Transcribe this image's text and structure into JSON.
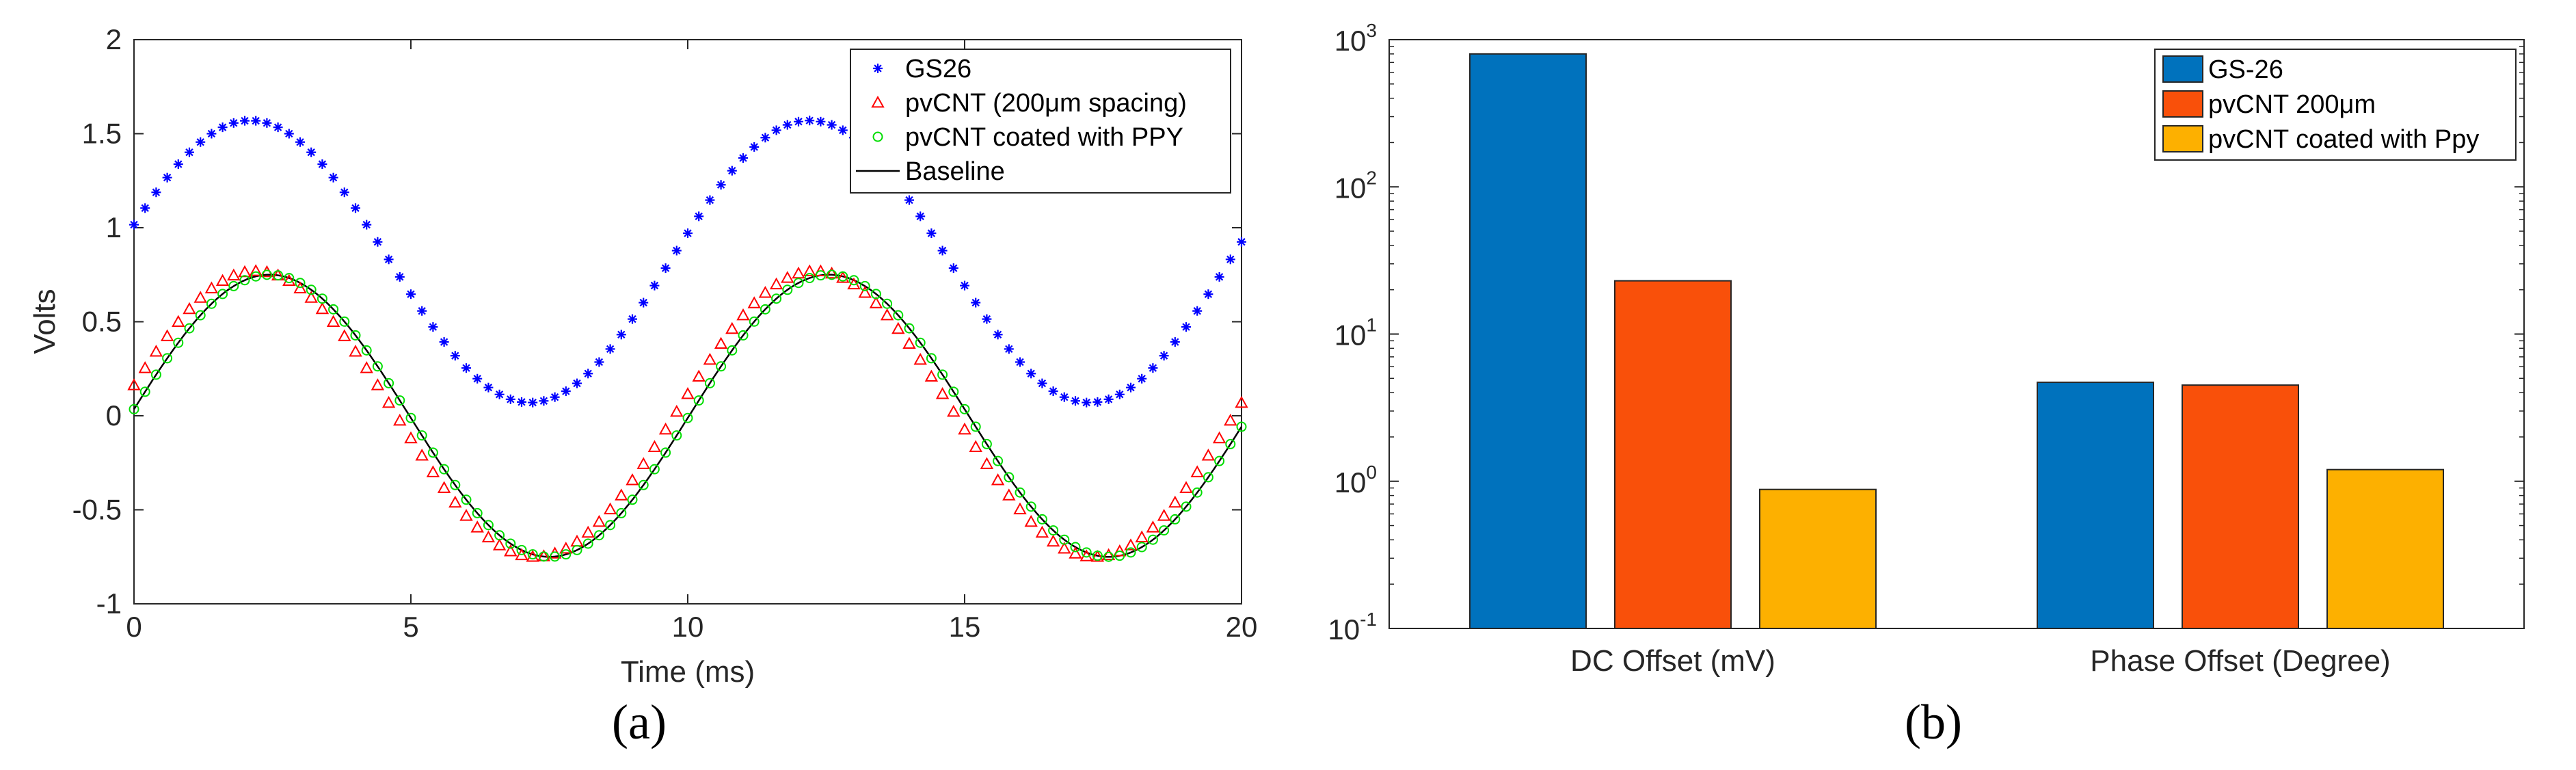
{
  "chart_data": [
    {
      "type": "scatter",
      "panel": "a",
      "panel_label": "(a)",
      "xlabel": "Time (ms)",
      "ylabel": "Volts",
      "xlim": [
        0,
        20
      ],
      "ylim": [
        -1,
        2
      ],
      "xticks": [
        "0",
        "5",
        "10",
        "15",
        "20"
      ],
      "yticks": [
        "-1",
        "-0.5",
        "0",
        "0.5",
        "1",
        "1.5",
        "2"
      ],
      "legend_position": "top-right",
      "series": [
        {
          "name": "GS26",
          "marker": "asterisk",
          "color": "#0000ff",
          "model": {
            "offset": 0.82,
            "amplitude": 0.75,
            "period_ms": 10.1,
            "peak_ms": 2.1
          }
        },
        {
          "name": "pvCNT (200μm spacing)",
          "marker": "triangle",
          "color": "#ff0000",
          "model": {
            "offset": 0.01,
            "amplitude": 0.76,
            "period_ms": 10.1,
            "peak_ms": 2.2
          }
        },
        {
          "name": "pvCNT coated with PPY",
          "marker": "circle",
          "color": "#00dd00",
          "model": {
            "offset": 0.0,
            "amplitude": 0.75,
            "period_ms": 10.1,
            "peak_ms": 2.45
          }
        },
        {
          "name": "Baseline",
          "marker": "line",
          "color": "#000000",
          "model": {
            "offset": 0.0,
            "amplitude": 0.75,
            "period_ms": 10.1,
            "peak_ms": 2.45
          }
        }
      ]
    },
    {
      "type": "bar",
      "panel": "b",
      "panel_label": "(b)",
      "yscale": "log",
      "ylim": [
        0.1,
        1000
      ],
      "ytick_base": "10",
      "ytick_exponents": [
        "-1",
        "0",
        "1",
        "2",
        "3"
      ],
      "categories": [
        "DC Offset (mV)",
        "Phase Offset (Degree)"
      ],
      "legend_position": "top-right",
      "series": [
        {
          "name": "GS-26",
          "color": "#0072bd",
          "values": [
            800,
            4.7
          ]
        },
        {
          "name": "pvCNT 200μm",
          "color": "#f9500a",
          "values": [
            23,
            4.5
          ]
        },
        {
          "name": "pvCNT coated with Ppy",
          "color": "#fdb000",
          "values": [
            0.88,
            1.2
          ]
        }
      ]
    }
  ]
}
